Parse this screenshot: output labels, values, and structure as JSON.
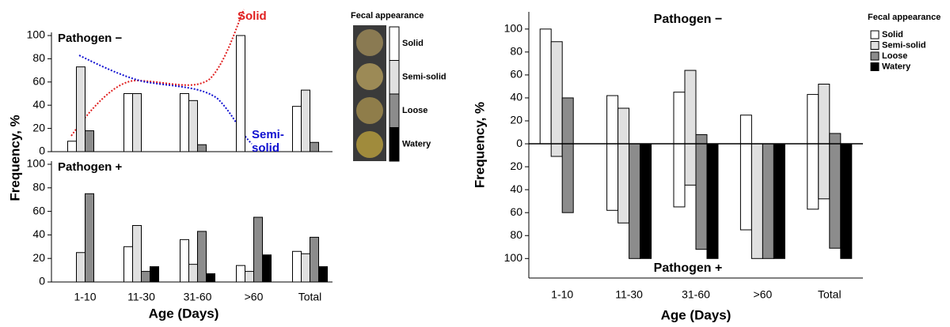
{
  "chart_data": [
    {
      "type": "bar",
      "title": "Pathogen −",
      "legend_title": "Fecal appearance",
      "annotations": [
        {
          "text": "Solid",
          "color": "#e02020"
        },
        {
          "text": "Semi-\nsolid",
          "color": "#1010d0"
        }
      ],
      "series": [
        {
          "name": "Solid",
          "color": "#ffffff",
          "values": [
            9,
            50,
            50,
            100,
            39
          ]
        },
        {
          "name": "Semi-solid",
          "color": "#e0e0e0",
          "values": [
            73,
            50,
            44,
            0,
            53
          ]
        },
        {
          "name": "Loose",
          "color": "#8c8c8c",
          "values": [
            18,
            0,
            6,
            0,
            8
          ]
        },
        {
          "name": "Watery",
          "color": "#000000",
          "values": [
            0,
            0,
            0,
            0,
            0
          ]
        }
      ],
      "ylim": [
        0,
        100
      ],
      "yticks": [
        0,
        20,
        40,
        60,
        80,
        100
      ]
    },
    {
      "type": "bar",
      "title": "Pathogen +",
      "xlabel": "Age (Days)",
      "ylabel": "Frequency, %",
      "categories": [
        "1-10",
        "11-30",
        "31-60",
        ">60",
        "Total"
      ],
      "series": [
        {
          "name": "Solid",
          "color": "#ffffff",
          "values": [
            0,
            30,
            36,
            14,
            26
          ]
        },
        {
          "name": "Semi-solid",
          "color": "#e0e0e0",
          "values": [
            25,
            48,
            15,
            9,
            24
          ]
        },
        {
          "name": "Loose",
          "color": "#8c8c8c",
          "values": [
            75,
            9,
            43,
            55,
            38
          ]
        },
        {
          "name": "Watery",
          "color": "#000000",
          "values": [
            0,
            13,
            7,
            23,
            13
          ]
        }
      ],
      "ylim": [
        0,
        100
      ],
      "yticks": [
        0,
        20,
        40,
        60,
        80,
        100
      ]
    },
    {
      "type": "diverging-bar",
      "upper_label": "Pathogen −",
      "lower_label": "Pathogen +",
      "xlabel": "Age (Days)",
      "ylabel": "Frequency, %",
      "legend_title": "Fecal appearance",
      "categories": [
        "1-10",
        "11-30",
        "31-60",
        ">60",
        "Total"
      ],
      "series": [
        {
          "name": "Solid",
          "color": "#ffffff",
          "values": [
            100,
            42,
            45,
            25,
            43
          ],
          "lower_values": [
            0,
            -58,
            -55,
            -75,
            -57
          ]
        },
        {
          "name": "Semi-solid",
          "color": "#e0e0e0",
          "values": [
            89,
            31,
            64,
            0,
            52
          ],
          "lower_values": [
            -11,
            -69,
            -36,
            -100,
            -48
          ]
        },
        {
          "name": "Loose",
          "color": "#8c8c8c",
          "values": [
            40,
            0,
            8,
            0,
            9
          ],
          "lower_values": [
            -60,
            -100,
            -92,
            -100,
            -91
          ]
        },
        {
          "name": "Watery",
          "color": "#000000",
          "values": [
            0,
            0,
            0,
            0,
            0
          ],
          "lower_values": [
            0,
            -100,
            -100,
            -100,
            -100
          ]
        }
      ],
      "ylim": [
        -117,
        115
      ],
      "yticks": [
        {
          "value": -100,
          "label": "100"
        },
        {
          "value": -80,
          "label": "80"
        },
        {
          "value": -60,
          "label": "60"
        },
        {
          "value": -40,
          "label": "40"
        },
        {
          "value": -20,
          "label": "20"
        },
        0,
        20,
        40,
        60,
        80,
        100
      ]
    }
  ]
}
